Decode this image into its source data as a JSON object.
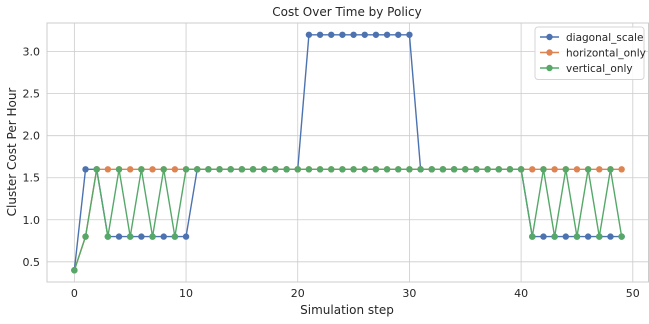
{
  "chart_data": {
    "type": "line",
    "title": "Cost Over Time by Policy",
    "xlabel": "Simulation step",
    "ylabel": "Cluster Cost Per Hour",
    "xlim": [
      -2.45,
      51.45
    ],
    "ylim": [
      0.26,
      3.34
    ],
    "xticks": [
      0,
      10,
      20,
      30,
      40,
      50
    ],
    "yticks": [
      0.5,
      1.0,
      1.5,
      2.0,
      2.5,
      3.0
    ],
    "xtick_labels": [
      "0",
      "10",
      "20",
      "30",
      "40",
      "50"
    ],
    "ytick_labels": [
      "0.5",
      "1.0",
      "1.5",
      "2.0",
      "2.5",
      "3.0"
    ],
    "grid": true,
    "legend_position": "top-right",
    "x": [
      0,
      1,
      2,
      3,
      4,
      5,
      6,
      7,
      8,
      9,
      10,
      11,
      12,
      13,
      14,
      15,
      16,
      17,
      18,
      19,
      20,
      21,
      22,
      23,
      24,
      25,
      26,
      27,
      28,
      29,
      30,
      31,
      32,
      33,
      34,
      35,
      36,
      37,
      38,
      39,
      40,
      41,
      42,
      43,
      44,
      45,
      46,
      47,
      48,
      49
    ],
    "series": [
      {
        "name": "diagonal_scale",
        "color": "#4c72b0",
        "values": [
          0.4,
          1.6,
          1.6,
          0.8,
          0.8,
          0.8,
          0.8,
          0.8,
          0.8,
          0.8,
          0.8,
          1.6,
          1.6,
          1.6,
          1.6,
          1.6,
          1.6,
          1.6,
          1.6,
          1.6,
          1.6,
          3.2,
          3.2,
          3.2,
          3.2,
          3.2,
          3.2,
          3.2,
          3.2,
          3.2,
          3.2,
          1.6,
          1.6,
          1.6,
          1.6,
          1.6,
          1.6,
          1.6,
          1.6,
          1.6,
          1.6,
          0.8,
          0.8,
          0.8,
          0.8,
          0.8,
          0.8,
          0.8,
          0.8,
          0.8
        ]
      },
      {
        "name": "horizontal_only",
        "color": "#dd8452",
        "values": [
          0.4,
          0.8,
          1.6,
          1.6,
          1.6,
          1.6,
          1.6,
          1.6,
          1.6,
          1.6,
          1.6,
          1.6,
          1.6,
          1.6,
          1.6,
          1.6,
          1.6,
          1.6,
          1.6,
          1.6,
          1.6,
          1.6,
          1.6,
          1.6,
          1.6,
          1.6,
          1.6,
          1.6,
          1.6,
          1.6,
          1.6,
          1.6,
          1.6,
          1.6,
          1.6,
          1.6,
          1.6,
          1.6,
          1.6,
          1.6,
          1.6,
          1.6,
          1.6,
          1.6,
          1.6,
          1.6,
          1.6,
          1.6,
          1.6,
          1.6
        ]
      },
      {
        "name": "vertical_only",
        "color": "#55a868",
        "values": [
          0.4,
          0.8,
          1.6,
          0.8,
          1.6,
          0.8,
          1.6,
          0.8,
          1.6,
          0.8,
          1.6,
          1.6,
          1.6,
          1.6,
          1.6,
          1.6,
          1.6,
          1.6,
          1.6,
          1.6,
          1.6,
          1.6,
          1.6,
          1.6,
          1.6,
          1.6,
          1.6,
          1.6,
          1.6,
          1.6,
          1.6,
          1.6,
          1.6,
          1.6,
          1.6,
          1.6,
          1.6,
          1.6,
          1.6,
          1.6,
          1.6,
          0.8,
          1.6,
          0.8,
          1.6,
          0.8,
          1.6,
          0.8,
          1.6,
          0.8
        ]
      }
    ]
  }
}
